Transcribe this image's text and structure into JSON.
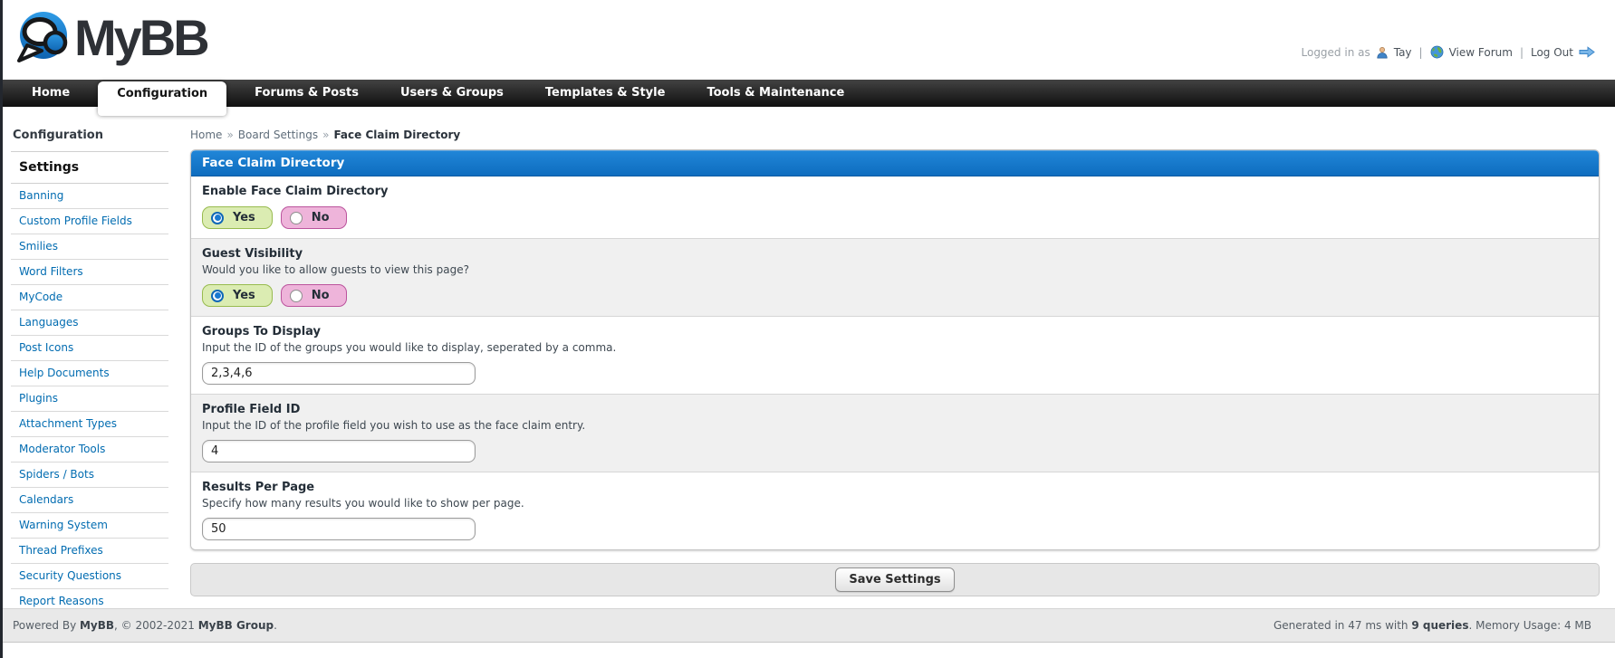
{
  "header": {
    "logo_text": "MyBB",
    "logged_in_prefix": "Logged in as",
    "username": "Tay",
    "separator": "|",
    "view_forum": "View Forum",
    "log_out": "Log Out"
  },
  "nav": {
    "tabs": [
      {
        "label": "Home",
        "active": false
      },
      {
        "label": "Configuration",
        "active": true
      },
      {
        "label": "Forums & Posts",
        "active": false
      },
      {
        "label": "Users & Groups",
        "active": false
      },
      {
        "label": "Templates & Style",
        "active": false
      },
      {
        "label": "Tools & Maintenance",
        "active": false
      }
    ]
  },
  "sidebar": {
    "title": "Configuration",
    "section": "Settings",
    "items": [
      "Banning",
      "Custom Profile Fields",
      "Smilies",
      "Word Filters",
      "MyCode",
      "Languages",
      "Post Icons",
      "Help Documents",
      "Plugins",
      "Attachment Types",
      "Moderator Tools",
      "Spiders / Bots",
      "Calendars",
      "Warning System",
      "Thread Prefixes",
      "Security Questions",
      "Report Reasons"
    ]
  },
  "breadcrumb": {
    "items": [
      "Home",
      "Board Settings"
    ],
    "current": "Face Claim Directory",
    "separator": "»"
  },
  "panel": {
    "title": "Face Claim Directory",
    "rows": [
      {
        "type": "radio",
        "label": "Enable Face Claim Directory",
        "description": "",
        "yes_label": "Yes",
        "no_label": "No",
        "selected": "yes"
      },
      {
        "type": "radio",
        "label": "Guest Visibility",
        "description": "Would you like to allow guests to view this page?",
        "yes_label": "Yes",
        "no_label": "No",
        "selected": "yes"
      },
      {
        "type": "text",
        "label": "Groups To Display",
        "description": "Input the ID of the groups you would like to display, seperated by a comma.",
        "value": "2,3,4,6"
      },
      {
        "type": "text",
        "label": "Profile Field ID",
        "description": "Input the ID of the profile field you wish to use as the face claim entry.",
        "value": "4"
      },
      {
        "type": "text",
        "label": "Results Per Page",
        "description": "Specify how many results you would like to show per page.",
        "value": "50"
      }
    ],
    "save_button": "Save Settings"
  },
  "footer": {
    "powered_prefix": "Powered By ",
    "brand": "MyBB",
    "copyright_mid": ", © 2002-2021 ",
    "brand2": "MyBB Group",
    "period": ".",
    "generated_prefix": "Generated in 47 ms with ",
    "queries": "9 queries",
    "generated_suffix": ". Memory Usage: 4 MB"
  },
  "colors": {
    "accent": "#0e6dbf",
    "accent_light": "#2186d8",
    "link": "#026cb1",
    "green_bg": "#dbecb2",
    "green_border": "#98bb4f",
    "pink_bg": "#eeb4da",
    "pink_border": "#bb549d",
    "nav_dark": "#101010",
    "footer_bg": "#e9e9e9"
  }
}
